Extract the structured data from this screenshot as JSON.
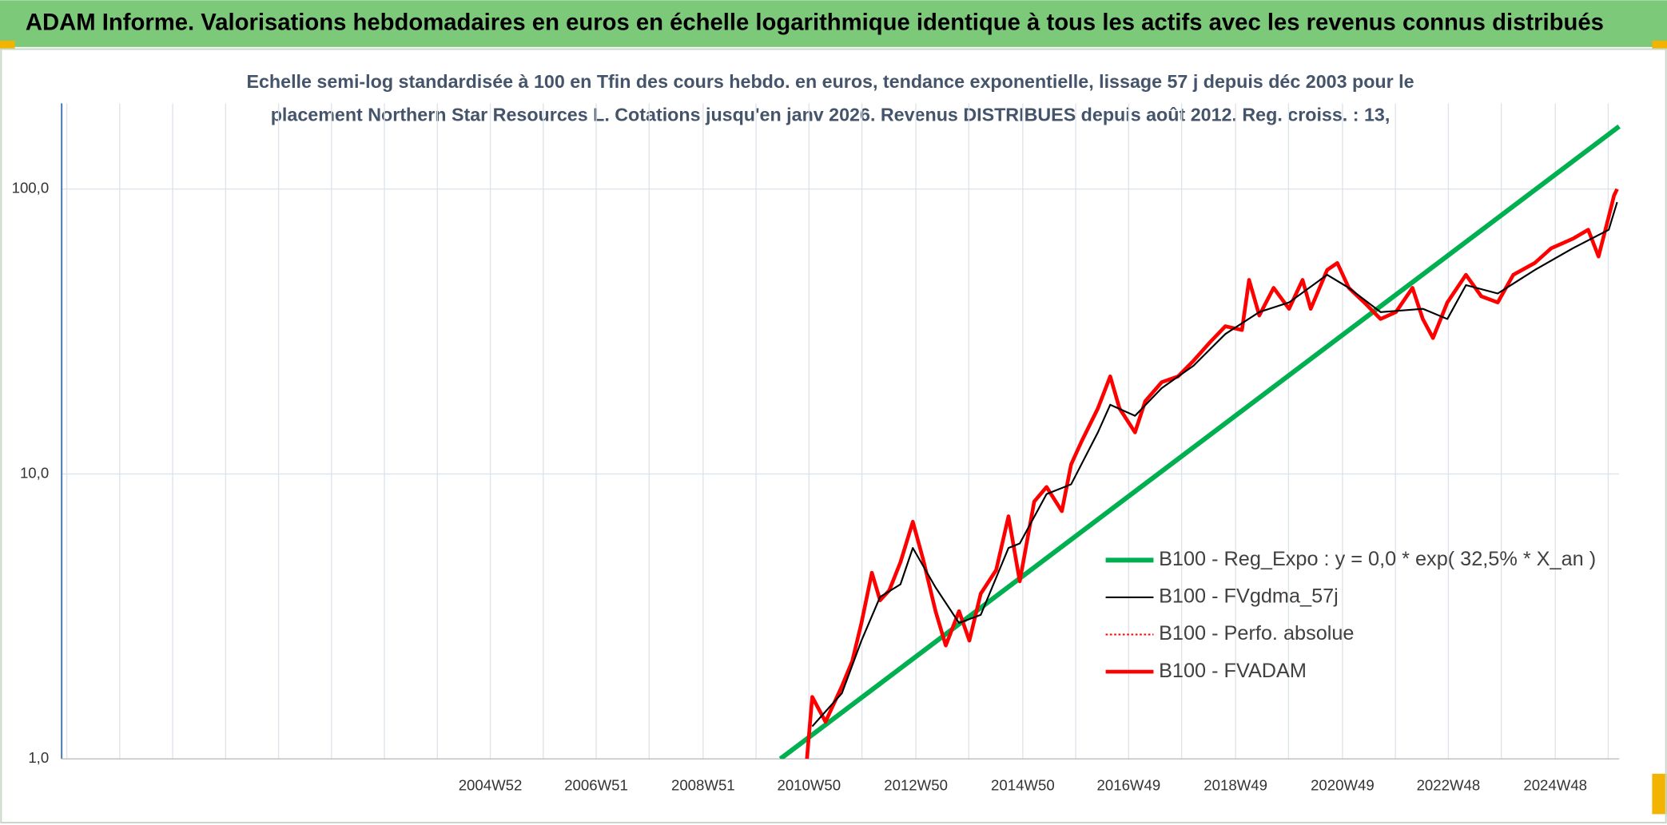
{
  "chart_data": {
    "type": "line",
    "title": "ADAM Informe. Valorisations hebdomadaires en euros en échelle logarithmique identique à tous les actifs avec les revenus connus distribués",
    "subtitle": [
      "Echelle semi-log standardisée à 100 en Tfin des cours hebdo. en euros, tendance exponentielle, lissage 57 j depuis déc 2003 pour le",
      "placement Northern Star Resources L. Cotations jusqu'en janv 2026. Revenus DISTRIBUES depuis août 2012. Reg. croiss. : 13,"
    ],
    "log_scale": true,
    "grid": true,
    "legend": "lower-right",
    "xlim": [
      "1996W51",
      "2026W06"
    ],
    "xticks": [
      "2004W52",
      "2006W51",
      "2008W51",
      "2010W50",
      "2012W50",
      "2014W50",
      "2016W49",
      "2018W49",
      "2020W49",
      "2022W48",
      "2024W48"
    ],
    "ylim": [
      1,
      200
    ],
    "yticks": [
      {
        "value": 1,
        "label": "1,0"
      },
      {
        "value": 10,
        "label": "10,0"
      },
      {
        "value": 100,
        "label": "100,0"
      }
    ],
    "series": [
      {
        "name": "B100 - Reg_Expo : y = 0,0 * exp( 32,5% *  X_an )",
        "color": "#00b050",
        "width": 4.5,
        "x": [
          "2010W22",
          "2026W06"
        ],
        "values": [
          1.0,
          166
        ]
      },
      {
        "name": "B100 - FVgdma_57j",
        "color": "#000000",
        "width": 1.6,
        "x": [
          "2011W01",
          "2011W30",
          "2011W49",
          "2012W15",
          "2012W35",
          "2012W47",
          "2013W17",
          "2013W40",
          "2014W09",
          "2014W36",
          "2014W47",
          "2015W21",
          "2015W45",
          "2016W19",
          "2016W31",
          "2017W03",
          "2017W29",
          "2018W08",
          "2018W39",
          "2019W20",
          "2019W49",
          "2020W34",
          "2021W03",
          "2021W34",
          "2022W23",
          "2022W47",
          "2023W13",
          "2023W44",
          "2024W28",
          "2025W13",
          "2025W48",
          "2026W04"
        ],
        "values": [
          1.3,
          1.7,
          2.6,
          3.7,
          4.1,
          5.5,
          4.0,
          3.0,
          3.2,
          5.5,
          5.7,
          8.5,
          9.2,
          14,
          17.5,
          16,
          20,
          24,
          31,
          37,
          40,
          50,
          45,
          37,
          38,
          35,
          46,
          43,
          52,
          62,
          72,
          90
        ]
      },
      {
        "name": "B100 - Perfo. absolue",
        "color": "#ff0000",
        "dash": "dotted"
      },
      {
        "name": "B100 - FVADAM",
        "color": "#ff0000",
        "width": 3.5,
        "x": [
          "2010W48",
          "2011W01",
          "2011W14",
          "2011W30",
          "2011W40",
          "2011W49",
          "2012W07",
          "2012W15",
          "2012W24",
          "2012W35",
          "2012W47",
          "2013W05",
          "2013W17",
          "2013W27",
          "2013W40",
          "2013W50",
          "2014W09",
          "2014W24",
          "2014W36",
          "2014W47",
          "2015W09",
          "2015W21",
          "2015W36",
          "2015W45",
          "2016W03",
          "2016W19",
          "2016W31",
          "2016W40",
          "2017W03",
          "2017W13",
          "2017W29",
          "2017W45",
          "2018W08",
          "2018W24",
          "2018W39",
          "2019W03",
          "2019W10",
          "2019W20",
          "2019W34",
          "2019W49",
          "2020W10",
          "2020W18",
          "2020W34",
          "2020W44",
          "2021W03",
          "2021W18",
          "2021W34",
          "2021W49",
          "2022W13",
          "2022W23",
          "2022W33",
          "2022W47",
          "2023W13",
          "2023W28",
          "2023W44",
          "2024W07",
          "2024W28",
          "2024W44",
          "2025W13",
          "2025W28",
          "2025W38",
          "2025W48",
          "2026W01",
          "2026W04"
        ],
        "values": [
          1.0,
          1.65,
          1.35,
          1.8,
          2.2,
          3.0,
          4.5,
          3.6,
          3.9,
          4.9,
          6.8,
          5.0,
          3.3,
          2.5,
          3.3,
          2.6,
          3.8,
          4.6,
          7.1,
          4.2,
          8.0,
          9.0,
          7.4,
          10.8,
          13,
          17,
          22,
          17,
          14,
          18,
          21,
          22,
          25,
          29,
          33,
          32,
          48,
          36,
          45,
          38,
          48,
          38,
          52,
          55,
          45,
          40,
          35,
          37,
          45,
          35,
          30,
          40,
          50,
          42,
          40,
          50,
          55,
          62,
          67,
          72,
          58,
          80,
          95,
          100
        ]
      }
    ]
  }
}
